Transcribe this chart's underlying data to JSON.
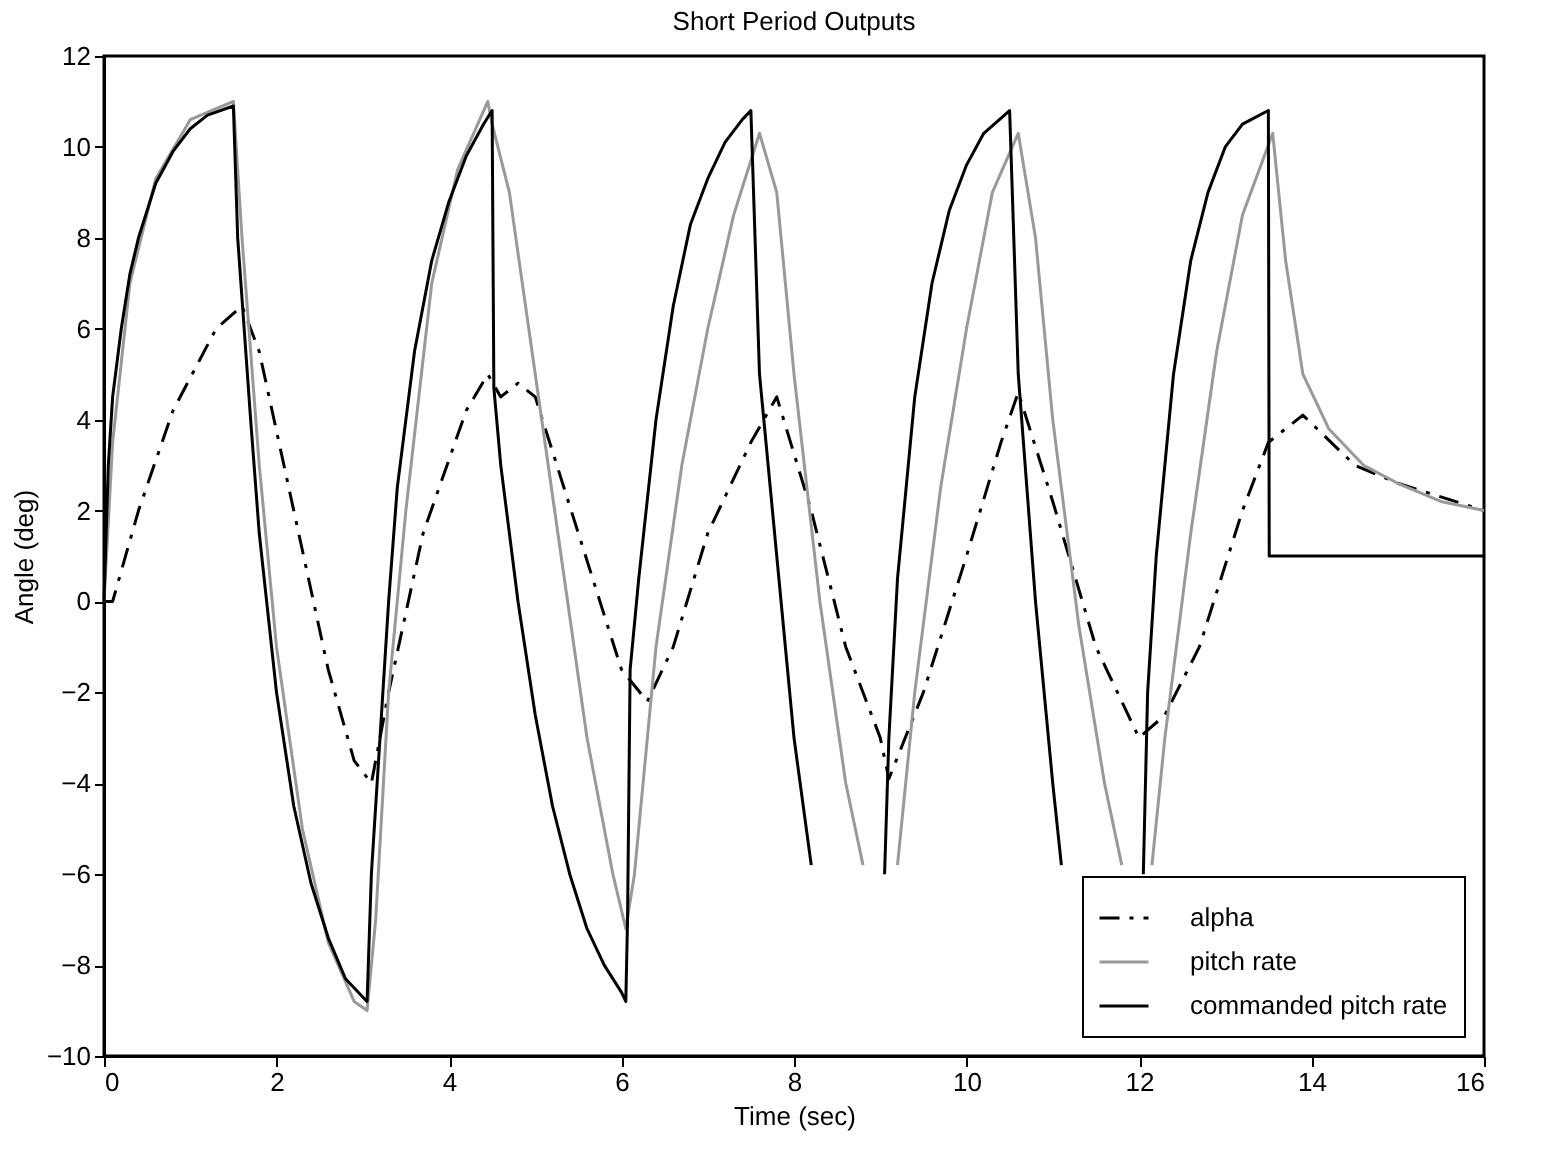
{
  "chart_data": {
    "type": "line",
    "title": "Short Period Outputs",
    "xlabel": "Time (sec)",
    "ylabel": "Angle (deg)",
    "xlim": [
      0,
      16
    ],
    "xticks": [
      0,
      2,
      4,
      6,
      8,
      10,
      12,
      14,
      16
    ],
    "ylim": [
      -10,
      12
    ],
    "yticks": [
      -10,
      -8,
      -6,
      -4,
      -2,
      0,
      2,
      4,
      6,
      8,
      10,
      12
    ],
    "grid": false,
    "legend": "bottom right",
    "marker": "none",
    "series": [
      {
        "name": "alpha",
        "color": "#000000",
        "line_style": "dashed",
        "x": [
          0,
          0.1,
          0.4,
          0.8,
          1.3,
          1.6,
          1.8,
          2.2,
          2.6,
          2.9,
          3.1,
          3.3,
          3.7,
          4.2,
          4.45,
          4.6,
          4.8,
          5.0,
          5.5,
          6.0,
          6.3,
          6.6,
          7.0,
          7.5,
          7.8,
          8.2,
          8.6,
          9.0,
          9.1,
          9.5,
          10.0,
          10.4,
          10.6,
          11.0,
          11.5,
          12.0,
          12.3,
          12.7,
          13.2,
          13.5,
          13.9,
          14.5,
          15.0,
          16.0
        ],
        "values": [
          0,
          0,
          2,
          4.2,
          6,
          6.5,
          5.5,
          2,
          -1.5,
          -3.5,
          -4,
          -2,
          1.5,
          4.2,
          5,
          4.5,
          4.8,
          4.5,
          1.5,
          -1.5,
          -2.2,
          -1,
          1.5,
          3.5,
          4.5,
          2,
          -1,
          -3,
          -3.9,
          -2,
          1,
          3.5,
          4.6,
          2.2,
          -1,
          -3,
          -2.5,
          -1,
          2,
          3.5,
          4.1,
          3,
          2.6,
          2
        ]
      },
      {
        "name": "pitch rate",
        "color": "#999999",
        "line_style": "solid",
        "x": [
          0,
          0.1,
          0.3,
          0.6,
          1.0,
          1.5,
          1.6,
          1.8,
          2.0,
          2.3,
          2.6,
          2.9,
          3.05,
          3.15,
          3.3,
          3.5,
          3.8,
          4.1,
          4.45,
          4.5,
          4.7,
          5.0,
          5.3,
          5.6,
          5.9,
          6.05,
          6.15,
          6.4,
          6.7,
          7.0,
          7.3,
          7.6,
          7.8,
          8.0,
          8.3,
          8.6,
          8.8,
          9.0,
          9.2,
          9.4,
          9.7,
          10.0,
          10.3,
          10.6,
          10.8,
          11.0,
          11.3,
          11.6,
          11.8,
          12.0,
          12.15,
          12.3,
          12.6,
          12.9,
          13.2,
          13.55,
          13.7,
          13.9,
          14.2,
          14.6,
          15.0,
          15.5,
          16.0
        ],
        "values": [
          0,
          3.5,
          7,
          9.3,
          10.6,
          11,
          8,
          3,
          -1,
          -5,
          -7.5,
          -8.8,
          -9,
          -7,
          -2,
          2,
          7,
          9.5,
          11,
          10.5,
          9,
          5,
          1,
          -3,
          -6,
          -7.2,
          -6,
          -1,
          3,
          6,
          8.5,
          10.3,
          9,
          5,
          0,
          -4,
          -5.8,
          null,
          -5.8,
          -2,
          2.5,
          6,
          9,
          10.3,
          8,
          4,
          -0.5,
          -4,
          -5.8,
          null,
          -5.8,
          -3,
          1.5,
          5.5,
          8.5,
          10.3,
          7.5,
          5,
          3.8,
          3,
          2.6,
          2.2,
          2
        ]
      },
      {
        "name": "commanded pitch rate",
        "color": "#000000",
        "line_style": "solid",
        "x": [
          0,
          0.05,
          0.1,
          0.2,
          0.3,
          0.4,
          0.6,
          0.8,
          1.0,
          1.2,
          1.5,
          1.55,
          1.7,
          1.8,
          2.0,
          2.2,
          2.4,
          2.6,
          2.8,
          3.0,
          3.05,
          3.1,
          3.2,
          3.3,
          3.4,
          3.6,
          3.8,
          4.0,
          4.2,
          4.4,
          4.5,
          4.52,
          4.6,
          4.8,
          5.0,
          5.2,
          5.4,
          5.6,
          5.8,
          6.0,
          6.05,
          6.07,
          6.1,
          6.2,
          6.4,
          6.6,
          6.8,
          7.0,
          7.2,
          7.4,
          7.5,
          7.6,
          7.8,
          8.0,
          8.2,
          8.6,
          9.05,
          9.1,
          9.2,
          9.4,
          9.6,
          9.8,
          10.0,
          10.2,
          10.5,
          10.6,
          10.8,
          11.0,
          11.1,
          11.6,
          12.05,
          12.1,
          12.2,
          12.4,
          12.6,
          12.8,
          13.0,
          13.2,
          13.5,
          13.51,
          16.0
        ],
        "values": [
          0,
          3,
          4.5,
          6,
          7.2,
          8,
          9.2,
          9.9,
          10.4,
          10.7,
          10.9,
          8,
          4,
          1.5,
          -2,
          -4.5,
          -6.2,
          -7.4,
          -8.3,
          -8.7,
          -8.8,
          -6,
          -3,
          0,
          2.5,
          5.5,
          7.5,
          8.8,
          9.8,
          10.5,
          10.8,
          4.7,
          3,
          0,
          -2.5,
          -4.5,
          -6,
          -7.2,
          -8,
          -8.6,
          -8.8,
          -7,
          -1.5,
          0.5,
          4,
          6.5,
          8.3,
          9.3,
          10.1,
          10.6,
          10.8,
          5,
          1,
          -3,
          -5.8,
          null,
          -6,
          -3,
          0.5,
          4.5,
          7,
          8.6,
          9.6,
          10.3,
          10.8,
          5,
          0,
          -4,
          -5.8,
          null,
          -6,
          -2,
          1,
          5,
          7.5,
          9,
          10,
          10.5,
          10.8,
          1,
          1
        ]
      }
    ]
  }
}
